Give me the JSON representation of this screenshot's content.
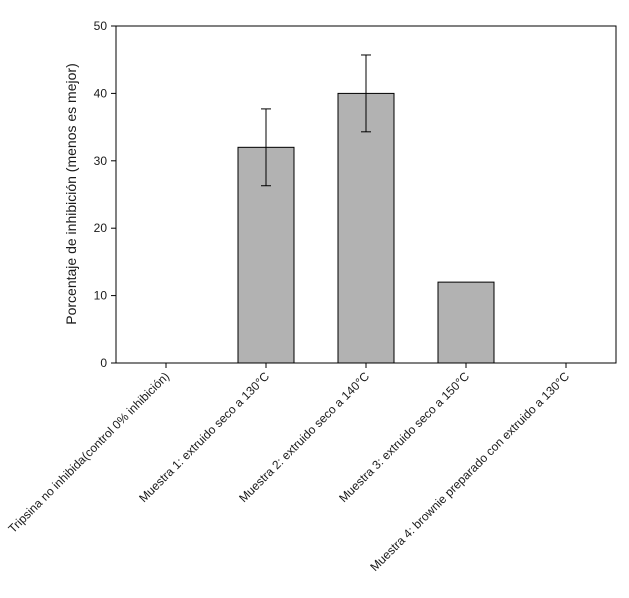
{
  "chart_data": {
    "type": "bar",
    "ylabel": "Porcentaje de inhibición (menos es mejor)",
    "ylim": [
      0,
      50
    ],
    "yticks": [
      0,
      10,
      20,
      30,
      40,
      50
    ],
    "categories": [
      "Tripsina no inhibida(control 0% inhibición)",
      "Muestra 1: extruido seco a 130°C",
      "Muestra 2: extruido seco a 140°C",
      "Muestra 3:  extruido seco a 150°C",
      "Muestra 4: brownie preparado con extruido a 130°C"
    ],
    "values": [
      0,
      32,
      40,
      12,
      0
    ],
    "error": [
      null,
      5.7,
      5.7,
      null,
      null
    ],
    "bar_color": "#b2b2b2",
    "grid": false
  }
}
